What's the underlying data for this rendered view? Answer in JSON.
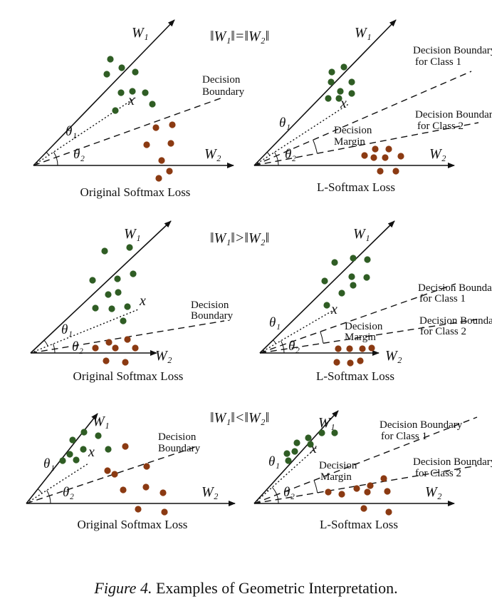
{
  "figure": {
    "caption": {
      "label": "Figure 4.",
      "text": "Examples of Geometric Interpretation."
    },
    "colors": {
      "class1": "#2f5d24",
      "class2": "#8b3a12",
      "line": "#111111"
    },
    "rows": [
      {
        "condition": "‖W₁‖=‖W₂‖",
        "panels": [
          {
            "kind": "softmax",
            "w1": "W₁",
            "w2": "W₂",
            "x": "x",
            "theta1": "θ₁",
            "theta2": "θ₂",
            "boundary": [
              "Decision",
              "Boundary"
            ],
            "caption": "Original Softmax Loss"
          },
          {
            "kind": "l-softmax",
            "w1": "W₁",
            "w2": "W₂",
            "x": "x",
            "theta1": "θ₁",
            "theta2": "θ₂",
            "boundary1": [
              "Decision Boundary",
              "for Class 1"
            ],
            "boundary2": [
              "Decision Boundary",
              "for Class 2"
            ],
            "margin": [
              "Decision",
              "Margin"
            ],
            "caption": "L-Softmax Loss"
          }
        ]
      },
      {
        "condition": "‖W₁‖>‖W₂‖",
        "panels": [
          {
            "kind": "softmax",
            "w1": "W₁",
            "w2": "W₂",
            "x": "x",
            "theta1": "θ₁",
            "theta2": "θ₂",
            "boundary": [
              "Decision",
              "Boundary"
            ],
            "caption": "Original Softmax Loss"
          },
          {
            "kind": "l-softmax",
            "w1": "W₁",
            "w2": "W₂",
            "x": "x",
            "theta1": "θ₁",
            "theta2": "θ₂",
            "boundary1": [
              "Decision Boundary",
              "for Class 1"
            ],
            "boundary2": [
              "Decision Boundary",
              "for Class 2"
            ],
            "margin": [
              "Decision",
              "Margin"
            ],
            "caption": "L-Softmax Loss"
          }
        ]
      },
      {
        "condition": "‖W₁‖<‖W₂‖",
        "panels": [
          {
            "kind": "softmax",
            "w1": "W₁",
            "w2": "W₂",
            "x": "x",
            "theta1": "θ₁",
            "theta2": "θ₂",
            "boundary": [
              "Decision",
              "Boundary"
            ],
            "caption": "Original Softmax Loss"
          },
          {
            "kind": "l-softmax",
            "w1": "W₁",
            "w2": "W₂",
            "x": "x",
            "theta1": "θ₁",
            "theta2": "θ₂",
            "boundary1": [
              "Decision Boundary",
              "for Class 1"
            ],
            "boundary2": [
              "Decision Boundary",
              "for Class 2"
            ],
            "margin": [
              "Decision",
              "Margin"
            ],
            "caption": "L-Softmax Loss"
          }
        ]
      }
    ]
  }
}
